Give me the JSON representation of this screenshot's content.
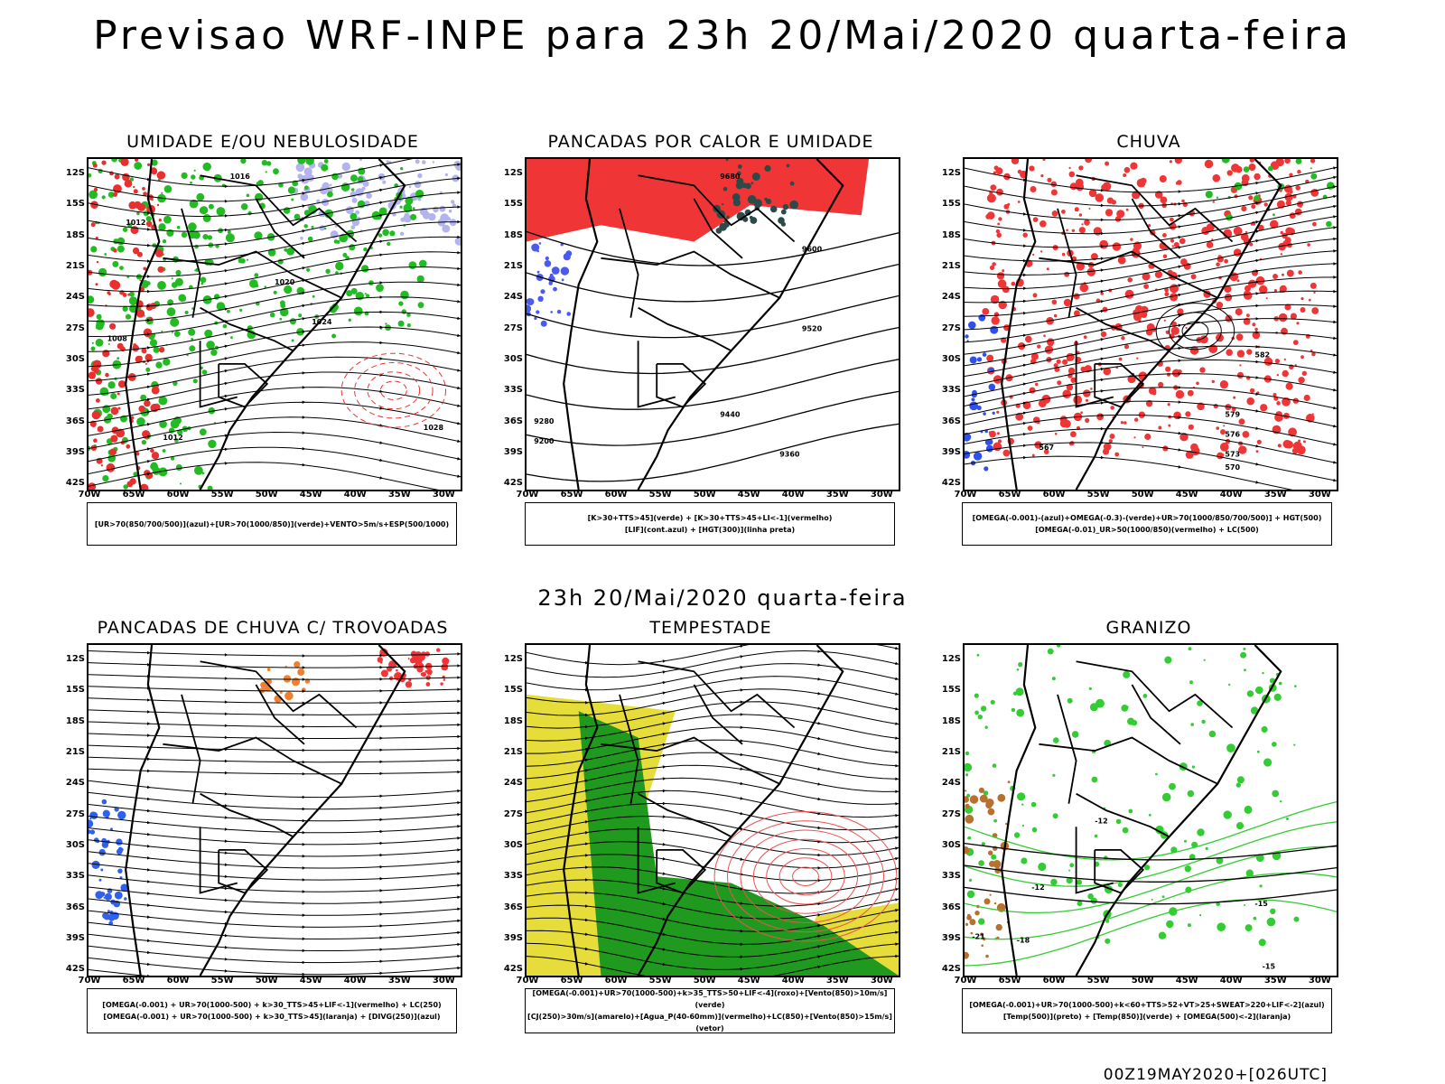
{
  "title": "Previsao WRF-INPE  para 23h 20/Mai/2020 quarta-feira",
  "subtitle": "23h 20/Mai/2020 quarta-feira",
  "footer": "00Z19MAY2020+[026UTC]",
  "lat_ticks": [
    "12S",
    "15S",
    "18S",
    "21S",
    "24S",
    "27S",
    "30S",
    "33S",
    "36S",
    "39S",
    "42S"
  ],
  "lon_ticks": [
    "70W",
    "65W",
    "60W",
    "55W",
    "50W",
    "45W",
    "40W",
    "35W",
    "30W"
  ],
  "panels": [
    {
      "title": "UMIDADE E/OU NEBULOSIDADE",
      "legend": [
        "[UR>70(850/700/500)](azul)+[UR>70(1000/850)](verde)+VENTO>5m/s+ESP(500/1000)"
      ],
      "contour_labels": [
        "1016",
        "1012",
        "1020",
        "1024",
        "1028",
        "1008",
        "1012"
      ]
    },
    {
      "title": "PANCADAS POR CALOR E UMIDADE",
      "legend": [
        "[K>30+TTS>45](verde)  +  [K>30+TTS>45+LI<-1](vermelho)",
        "[LIF](cont.azul)  +  [HGT(300)](linha preta)"
      ],
      "contour_labels": [
        "9680",
        "9600",
        "9520",
        "9440",
        "9360",
        "9280",
        "9200"
      ]
    },
    {
      "title": "CHUVA",
      "legend": [
        "[OMEGA(-0.001)-(azul)+OMEGA(-0.3)-(verde)+UR>70(1000/850/700/500)]  +  HGT(500)",
        "[OMEGA(-0.01)_UR>50(1000/850)(vermelho) + LC(500)"
      ],
      "contour_labels": [
        "582",
        "579",
        "576",
        "573",
        "570",
        "567"
      ]
    },
    {
      "title": "PANCADAS DE CHUVA C/ TROVOADAS",
      "legend": [
        "[OMEGA(-0.001) + UR>70(1000-500) + k>30_TTS>45+LIF<-1](vermelho) + LC(250)",
        "[OMEGA(-0.001) + UR>70(1000-500) + k>30_TTS>45](laranja) + [DIVG(250)](azul)"
      ],
      "contour_labels": []
    },
    {
      "title": "TEMPESTADE",
      "legend": [
        "[OMEGA(-0.001)+UR>70(1000-500)+k>35_TTS>50+LIF<-4](roxo)+[Vento(850)>10m/s](verde)",
        "[CJ(250)>30m/s](amarelo)+[Agua_P(40-60mm)](vermelho)+LC(850)+[Vento(850)>15m/s](vetor)"
      ],
      "contour_labels": []
    },
    {
      "title": "GRANIZO",
      "legend": [
        "[OMEGA(-0.001)+UR>70(1000-500)+k<60+TTS>52+VT>25+SWEAT>220+LIF<-2](azul)",
        "[Temp(500)](preto)  +  [Temp(850)](verde)  +  [OMEGA(500)<-2](laranja)"
      ],
      "contour_labels": [
        "-12",
        "-12",
        "-15",
        "-18",
        "-21",
        "-15"
      ]
    }
  ]
}
